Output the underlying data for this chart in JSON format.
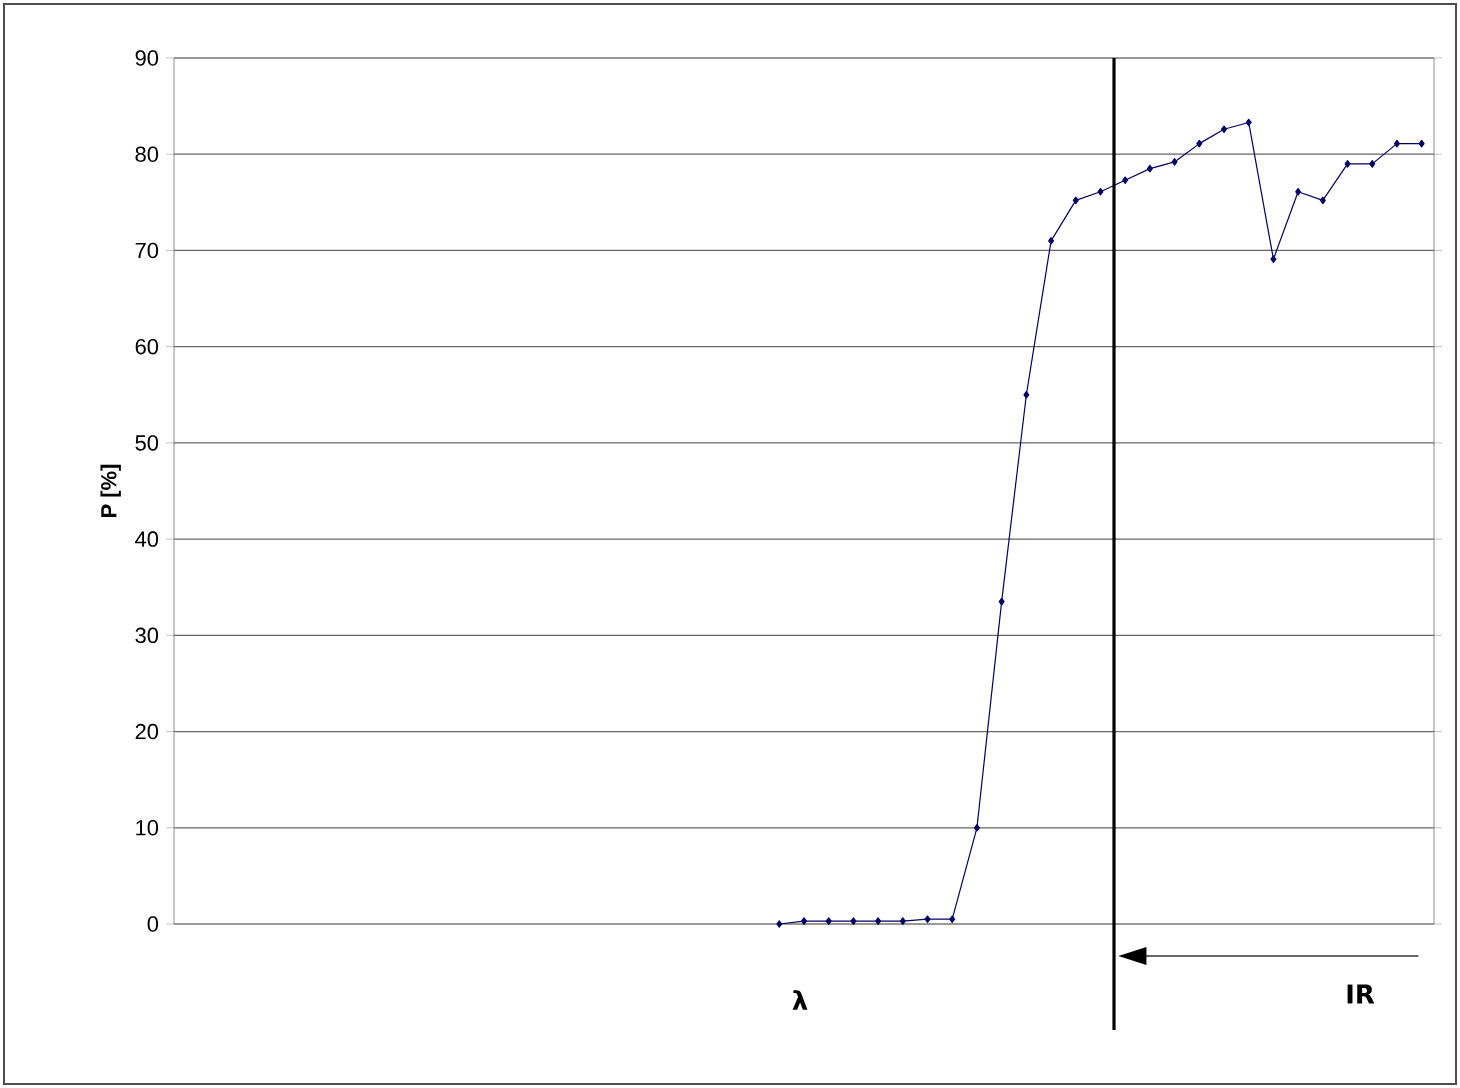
{
  "chart_data": {
    "type": "line",
    "ylabel": "P [%]",
    "categories": [
      null,
      null,
      null,
      null,
      null,
      null,
      null,
      null,
      null,
      null,
      null,
      null,
      null,
      null,
      null,
      null,
      null,
      null,
      null,
      null,
      null,
      null,
      null,
      null,
      null,
      null,
      null,
      null,
      null,
      null,
      null,
      null,
      null,
      null,
      null,
      null,
      null,
      null,
      null,
      null,
      null,
      null,
      null,
      null,
      null,
      null,
      null,
      null,
      null,
      null,
      null
    ],
    "series": [
      {
        "color": "#000066",
        "values": [
          null,
          null,
          null,
          null,
          null,
          null,
          null,
          null,
          null,
          null,
          null,
          null,
          null,
          null,
          null,
          null,
          null,
          null,
          null,
          null,
          null,
          null,
          null,
          null,
          0,
          0.3,
          0.3,
          0.3,
          0.3,
          0.3,
          0.5,
          0.5,
          10,
          33.5,
          55,
          71,
          75.2,
          76.1,
          77.3,
          78.5,
          79.2,
          81.1,
          82.6,
          83.3,
          69.1,
          76.1,
          75.2,
          79,
          79,
          81.1,
          81.1
        ]
      }
    ],
    "ylim": [
      0,
      90
    ],
    "yticks": [
      0,
      10,
      20,
      30,
      40,
      50,
      60,
      70,
      80,
      90
    ],
    "grid": "y",
    "marker": "diamond",
    "line_style": "solid",
    "annotations": [
      "λ",
      "IR"
    ]
  }
}
